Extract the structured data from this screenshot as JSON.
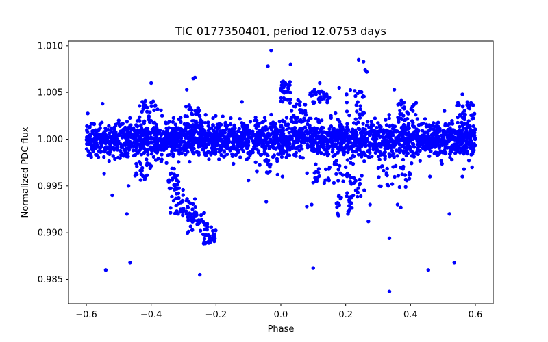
{
  "chart_data": {
    "type": "scatter",
    "title": "TIC 0177350401, period 12.0753 days",
    "xlabel": "Phase",
    "ylabel": "Normalized PDC flux",
    "xlim": [
      -0.655,
      0.655
    ],
    "ylim": [
      0.9824,
      1.0105
    ],
    "xticks": [
      -0.6,
      -0.4,
      -0.2,
      0.0,
      0.2,
      0.4,
      0.6
    ],
    "xtick_labels": [
      "−0.6",
      "−0.4",
      "−0.2",
      "0.0",
      "0.2",
      "0.4",
      "0.6"
    ],
    "yticks": [
      0.985,
      0.99,
      0.995,
      1.0,
      1.005,
      1.01
    ],
    "ytick_labels": [
      "0.985",
      "0.990",
      "0.995",
      "1.000",
      "1.005",
      "1.010"
    ],
    "grid": false,
    "marker_color": "#0000ff",
    "series": [
      {
        "name": "PDC flux",
        "outliers": [
          [
            -0.54,
            0.986
          ],
          [
            -0.465,
            0.9868
          ],
          [
            -0.475,
            0.992
          ],
          [
            -0.47,
            0.995
          ],
          [
            -0.25,
            0.9855
          ],
          [
            -0.545,
            0.9963
          ],
          [
            -0.4,
            1.006
          ],
          [
            -0.29,
            1.0053
          ],
          [
            -0.27,
            1.0065
          ],
          [
            -0.265,
            1.0066
          ],
          [
            -0.1,
            0.9956
          ],
          [
            -0.045,
            0.9933
          ],
          [
            -0.04,
            1.0078
          ],
          [
            -0.03,
            1.0095
          ],
          [
            0.03,
            1.008
          ],
          [
            0.1,
            0.9862
          ],
          [
            0.08,
            0.9928
          ],
          [
            0.095,
            0.993
          ],
          [
            0.24,
            1.0085
          ],
          [
            0.255,
            1.0083
          ],
          [
            0.26,
            1.0074
          ],
          [
            0.265,
            1.0072
          ],
          [
            0.27,
            0.9912
          ],
          [
            0.275,
            0.993
          ],
          [
            0.335,
            0.9837
          ],
          [
            0.335,
            0.9894
          ],
          [
            0.36,
            0.993
          ],
          [
            0.37,
            0.9927
          ],
          [
            0.35,
            1.0053
          ],
          [
            0.455,
            0.986
          ],
          [
            0.46,
            0.996
          ],
          [
            0.52,
            0.992
          ],
          [
            0.535,
            0.9868
          ],
          [
            0.56,
            0.996
          ],
          [
            0.56,
            1.0048
          ],
          [
            -0.55,
            1.0038
          ],
          [
            0.12,
            1.006
          ],
          [
            -0.12,
            1.004
          ],
          [
            0.18,
            1.0055
          ],
          [
            -0.01,
            0.9962
          ],
          [
            0.005,
            0.996
          ],
          [
            -0.52,
            0.994
          ],
          [
            0.565,
            0.9968
          ],
          [
            0.59,
            0.997
          ]
        ],
        "clusters": [
          {
            "x": [
              -0.355,
              -0.31
            ],
            "y_center": 0.996,
            "y_spread": 0.001,
            "n": 18
          },
          {
            "x": [
              -0.345,
              -0.3
            ],
            "y_center": 0.9935,
            "y_spread": 0.0015,
            "n": 30
          },
          {
            "x": [
              -0.31,
              -0.26
            ],
            "y_center": 0.9925,
            "y_spread": 0.0012,
            "n": 30
          },
          {
            "x": [
              -0.29,
              -0.235
            ],
            "y_center": 0.991,
            "y_spread": 0.0012,
            "n": 30
          },
          {
            "x": [
              -0.24,
              -0.2
            ],
            "y_center": 0.99,
            "y_spread": 0.0012,
            "n": 28
          },
          {
            "x": [
              -0.23,
              -0.2
            ],
            "y_center": 0.989,
            "y_spread": 0.0008,
            "n": 10
          },
          {
            "x": [
              0.17,
              0.22
            ],
            "y_center": 0.993,
            "y_spread": 0.0012,
            "n": 22
          },
          {
            "x": [
              0.2,
              0.26
            ],
            "y_center": 0.995,
            "y_spread": 0.0014,
            "n": 30
          },
          {
            "x": [
              0.0,
              0.03
            ],
            "y_center": 1.005,
            "y_spread": 0.0012,
            "n": 30
          },
          {
            "x": [
              0.03,
              0.08
            ],
            "y_center": 1.003,
            "y_spread": 0.0012,
            "n": 30
          },
          {
            "x": [
              0.09,
              0.15
            ],
            "y_center": 1.0045,
            "y_spread": 0.0008,
            "n": 30
          },
          {
            "x": [
              0.2,
              0.26
            ],
            "y_center": 1.004,
            "y_spread": 0.0014,
            "n": 22
          },
          {
            "x": [
              -0.44,
              -0.38
            ],
            "y_center": 1.003,
            "y_spread": 0.0012,
            "n": 26
          },
          {
            "x": [
              -0.3,
              -0.25
            ],
            "y_center": 1.0025,
            "y_spread": 0.0012,
            "n": 20
          },
          {
            "x": [
              0.36,
              0.42
            ],
            "y_center": 1.003,
            "y_spread": 0.0012,
            "n": 26
          },
          {
            "x": [
              0.54,
              0.6
            ],
            "y_center": 1.003,
            "y_spread": 0.001,
            "n": 26
          },
          {
            "x": [
              -0.45,
              -0.4
            ],
            "y_center": 0.9965,
            "y_spread": 0.001,
            "n": 20
          },
          {
            "x": [
              -0.08,
              -0.02
            ],
            "y_center": 0.9975,
            "y_spread": 0.0012,
            "n": 20
          },
          {
            "x": [
              0.3,
              0.4
            ],
            "y_center": 0.996,
            "y_spread": 0.0012,
            "n": 30
          },
          {
            "x": [
              0.08,
              0.2
            ],
            "y_center": 0.9965,
            "y_spread": 0.0012,
            "n": 30
          }
        ],
        "baseline": {
          "x": [
            -0.6,
            0.6
          ],
          "y_center": 1.0,
          "y_spread": 0.00095,
          "n": 2600
        }
      }
    ]
  }
}
